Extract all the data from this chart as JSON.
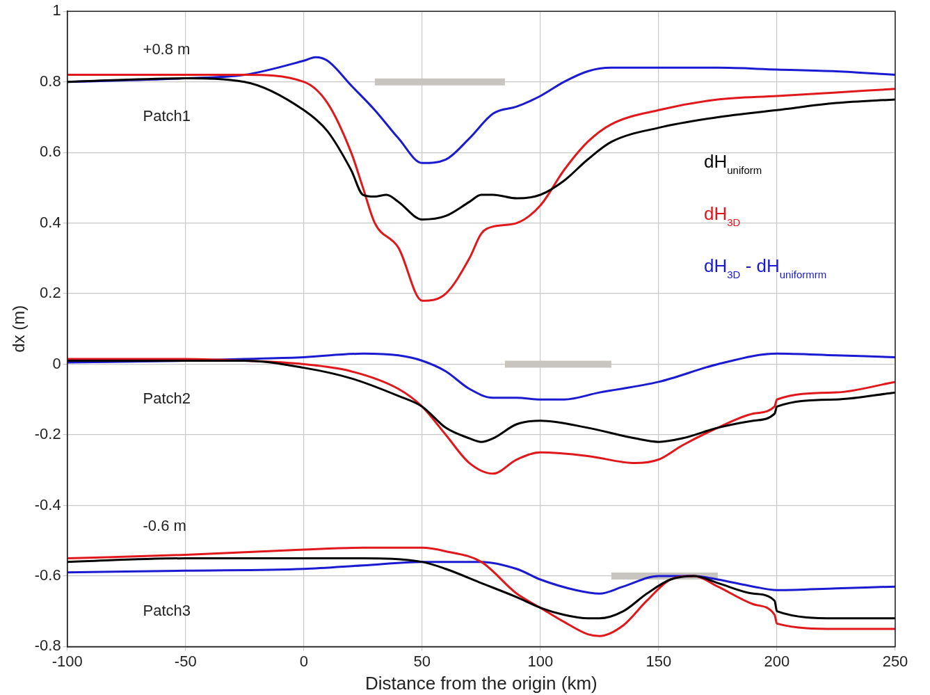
{
  "chart_data": {
    "type": "line",
    "xlabel": "Distance from the origin (km)",
    "ylabel": "dx (m)",
    "xlim": [
      -100,
      250
    ],
    "xticks": [
      -100,
      -50,
      0,
      50,
      100,
      150,
      200,
      250
    ],
    "ylim": [
      -0.8,
      1
    ],
    "yticks": [
      -0.8,
      -0.6,
      -0.4,
      -0.2,
      0,
      0.2,
      0.4,
      0.6,
      0.8,
      1
    ],
    "grid": true,
    "legend": "right",
    "marker": "none",
    "line_style": "solid",
    "annotations": [
      "+0.8 m",
      "Patch1",
      "Patch2",
      "-0.6 m",
      "Patch3"
    ],
    "series": [
      {
        "name": "dH$_{uniform}$",
        "color": "#000000",
        "x": [
          -100,
          -50,
          -25,
          0,
          10,
          20,
          25,
          30,
          35,
          40,
          50,
          60,
          70,
          75,
          80,
          90,
          100,
          110,
          120,
          130,
          150,
          175,
          200,
          225,
          250
        ],
        "values": [
          0.8,
          0.81,
          0.8,
          0.72,
          0.66,
          0.55,
          0.48,
          0.475,
          0.48,
          0.46,
          0.41,
          0.42,
          0.46,
          0.48,
          0.48,
          0.47,
          0.48,
          0.52,
          0.58,
          0.63,
          0.67,
          0.7,
          0.72,
          0.74,
          0.75
        ]
      },
      {
        "name": "dH$_{3D}$",
        "color": "#e0181c",
        "x": [
          -100,
          -50,
          -25,
          0,
          10,
          20,
          25,
          30,
          40,
          50,
          60,
          70,
          75,
          80,
          90,
          100,
          110,
          120,
          130,
          150,
          175,
          200,
          225,
          250
        ],
        "values": [
          0.82,
          0.82,
          0.82,
          0.8,
          0.74,
          0.6,
          0.5,
          0.4,
          0.33,
          0.18,
          0.2,
          0.3,
          0.37,
          0.39,
          0.4,
          0.45,
          0.55,
          0.63,
          0.68,
          0.72,
          0.75,
          0.76,
          0.77,
          0.78
        ]
      },
      {
        "name": "dH$_{3D}$ - dH$_{uniformrm}$",
        "color": "#1a1ad0",
        "x": [
          -100,
          -50,
          -25,
          0,
          5,
          10,
          20,
          30,
          40,
          50,
          60,
          70,
          80,
          90,
          100,
          110,
          120,
          130,
          150,
          175,
          200,
          225,
          250
        ],
        "values": [
          0.8,
          0.81,
          0.82,
          0.86,
          0.87,
          0.86,
          0.79,
          0.72,
          0.64,
          0.57,
          0.58,
          0.64,
          0.71,
          0.73,
          0.76,
          0.8,
          0.83,
          0.84,
          0.84,
          0.84,
          0.835,
          0.83,
          0.82
        ]
      },
      {
        "color": "#000000",
        "x": [
          -100,
          -50,
          -25,
          0,
          20,
          40,
          50,
          60,
          70,
          75,
          80,
          90,
          100,
          120,
          140,
          150,
          160,
          175,
          190,
          199,
          200,
          225,
          250
        ],
        "values": [
          0.01,
          0.01,
          0.01,
          -0.01,
          -0.04,
          -0.09,
          -0.12,
          -0.18,
          -0.21,
          -0.22,
          -0.21,
          -0.17,
          -0.16,
          -0.18,
          -0.21,
          -0.22,
          -0.21,
          -0.18,
          -0.16,
          -0.14,
          -0.12,
          -0.1,
          -0.08
        ]
      },
      {
        "color": "#e0181c",
        "x": [
          -100,
          -50,
          -25,
          0,
          20,
          40,
          50,
          60,
          70,
          80,
          90,
          100,
          120,
          140,
          150,
          160,
          175,
          190,
          199,
          200,
          225,
          250
        ],
        "values": [
          0.015,
          0.015,
          0.01,
          0.0,
          -0.02,
          -0.07,
          -0.12,
          -0.2,
          -0.28,
          -0.31,
          -0.27,
          -0.25,
          -0.26,
          -0.28,
          -0.27,
          -0.23,
          -0.18,
          -0.14,
          -0.12,
          -0.1,
          -0.08,
          -0.05
        ]
      },
      {
        "color": "#1a1ad0",
        "x": [
          -100,
          -50,
          -25,
          0,
          25,
          40,
          50,
          60,
          70,
          80,
          90,
          100,
          110,
          125,
          150,
          175,
          200,
          225,
          250
        ],
        "values": [
          0.005,
          0.01,
          0.015,
          0.02,
          0.03,
          0.025,
          0.01,
          -0.02,
          -0.07,
          -0.095,
          -0.095,
          -0.1,
          -0.1,
          -0.08,
          -0.05,
          0.0,
          0.03,
          0.025,
          0.02
        ]
      },
      {
        "color": "#000000",
        "x": [
          -100,
          -50,
          0,
          25,
          50,
          60,
          75,
          90,
          100,
          110,
          120,
          125,
          135,
          145,
          155,
          165,
          175,
          190,
          199,
          200,
          225,
          250
        ],
        "values": [
          -0.56,
          -0.55,
          -0.55,
          -0.55,
          -0.56,
          -0.58,
          -0.62,
          -0.66,
          -0.69,
          -0.71,
          -0.72,
          -0.72,
          -0.7,
          -0.65,
          -0.61,
          -0.6,
          -0.62,
          -0.65,
          -0.67,
          -0.7,
          -0.72,
          -0.72
        ]
      },
      {
        "color": "#e0181c",
        "x": [
          -100,
          -50,
          0,
          25,
          50,
          60,
          75,
          90,
          100,
          110,
          120,
          125,
          135,
          145,
          155,
          165,
          175,
          190,
          199,
          200,
          225,
          250
        ],
        "values": [
          -0.55,
          -0.54,
          -0.525,
          -0.52,
          -0.52,
          -0.53,
          -0.56,
          -0.65,
          -0.69,
          -0.73,
          -0.765,
          -0.77,
          -0.74,
          -0.67,
          -0.61,
          -0.6,
          -0.63,
          -0.68,
          -0.71,
          -0.735,
          -0.75,
          -0.75
        ]
      },
      {
        "color": "#1a1ad0",
        "x": [
          -100,
          -50,
          0,
          25,
          50,
          75,
          90,
          100,
          115,
          125,
          135,
          150,
          165,
          175,
          190,
          200,
          225,
          250
        ],
        "values": [
          -0.59,
          -0.585,
          -0.58,
          -0.57,
          -0.56,
          -0.56,
          -0.58,
          -0.61,
          -0.64,
          -0.65,
          -0.63,
          -0.6,
          -0.6,
          -0.61,
          -0.63,
          -0.64,
          -0.635,
          -0.63
        ]
      },
      {
        "color": "#c8c5c0",
        "x": [
          30,
          85
        ],
        "values": [
          0.8,
          0.8
        ]
      },
      {
        "color": "#c8c5c0",
        "x": [
          85,
          130
        ],
        "values": [
          0,
          0
        ]
      },
      {
        "color": "#c8c5c0",
        "x": [
          130,
          175
        ],
        "values": [
          -0.6,
          -0.6
        ]
      }
    ]
  }
}
